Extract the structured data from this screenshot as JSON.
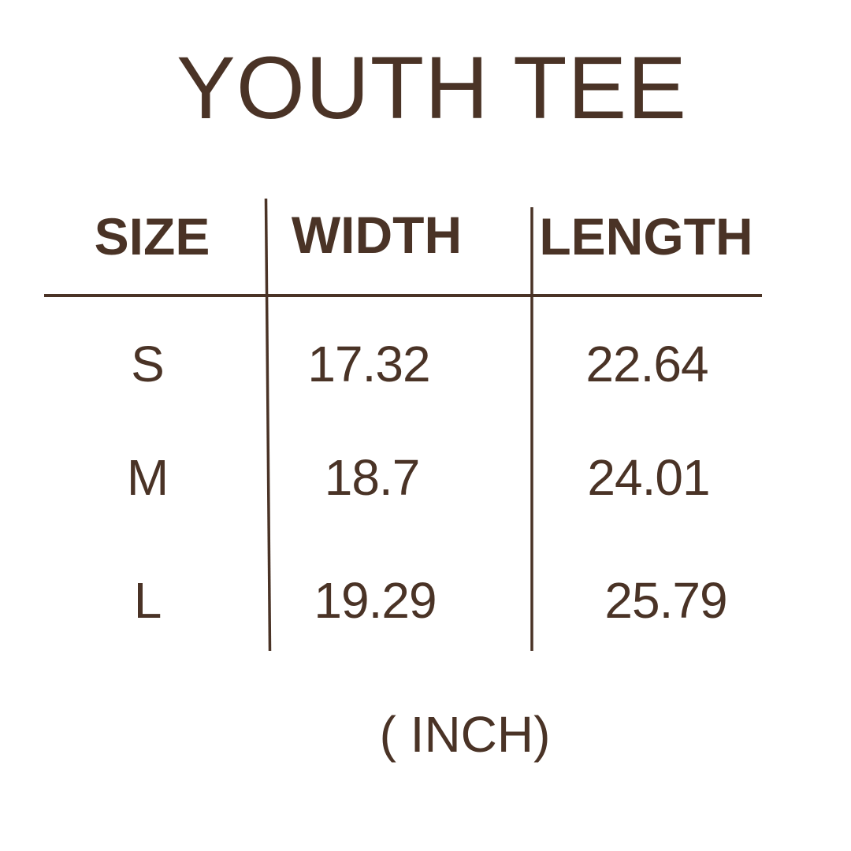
{
  "title": "YOUTH TEE",
  "colors": {
    "ink": "#4a3326",
    "background": "#ffffff"
  },
  "table": {
    "headers": [
      "SIZE",
      "WIDTH",
      "LENGTH"
    ],
    "rows": [
      {
        "size": "S",
        "width": "17.32",
        "length": "22.64"
      },
      {
        "size": "M",
        "width": "18.7",
        "length": "24.01"
      },
      {
        "size": "L",
        "width": "19.29",
        "length": "25.79"
      }
    ]
  },
  "unit": "( INCH)"
}
